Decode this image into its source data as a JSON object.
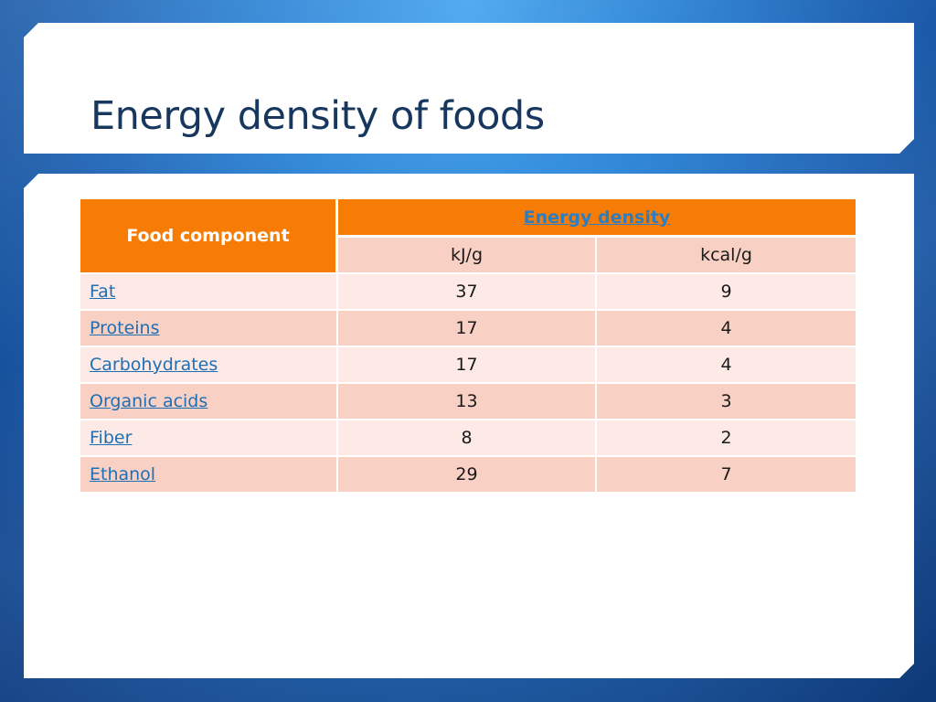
{
  "slide": {
    "title": "Energy density of foods"
  },
  "table": {
    "header": {
      "food_component": "Food component",
      "energy_density": "Energy density",
      "unit_kj": "kJ/g",
      "unit_kcal": "kcal/g"
    },
    "rows": [
      {
        "food": "Fat",
        "kj": "37",
        "kcal": "9"
      },
      {
        "food": "Proteins",
        "kj": "17",
        "kcal": "4"
      },
      {
        "food": "Carbohydrates",
        "kj": "17",
        "kcal": "4"
      },
      {
        "food": "Organic acids",
        "kj": "13",
        "kcal": "3"
      },
      {
        "food": "Fiber",
        "kj": "8",
        "kcal": "2"
      },
      {
        "food": "Ethanol",
        "kj": "29",
        "kcal": "7"
      }
    ]
  },
  "colors": {
    "background": "#2f86d6",
    "title_text": "#17375e",
    "header_orange": "#f67c06",
    "row_light": "#fde9e5",
    "row_dark": "#f9d0c4",
    "link": "#1f6fb5"
  }
}
